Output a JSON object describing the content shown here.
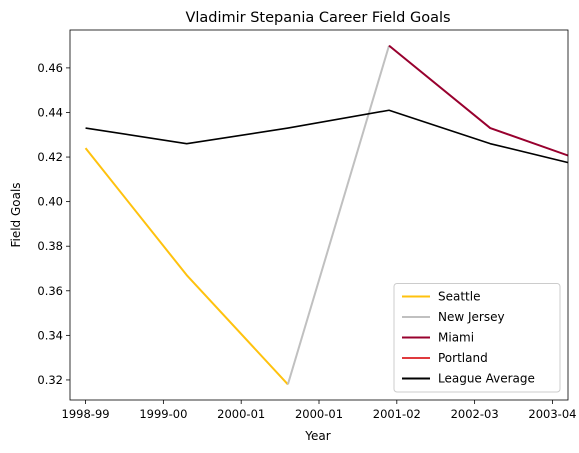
{
  "chart_data": {
    "type": "line",
    "title": "Vladimir Stepania Career Field Goals",
    "xlabel": "Year",
    "ylabel": "Field Goals",
    "ylim": [
      0.311,
      0.477
    ],
    "yticks": [
      0.32,
      0.34,
      0.36,
      0.38,
      0.4,
      0.42,
      0.44,
      0.46
    ],
    "ytick_labels": [
      "0.32",
      "0.34",
      "0.36",
      "0.38",
      "0.40",
      "0.42",
      "0.44",
      "0.46"
    ],
    "xlim": [
      -0.2,
      6.2
    ],
    "xticks": [
      0,
      1,
      2,
      3,
      4,
      5,
      6
    ],
    "xtick_labels": [
      "1998-99",
      "1999-00",
      "2000-01",
      "2000-01",
      "2001-02",
      "2002-03",
      "2003-04"
    ],
    "grid": false,
    "legend_position": "lower-right",
    "series": [
      {
        "name": "Seattle",
        "color": "#FFC20E",
        "width": 2,
        "x": [
          0,
          1.3,
          2.6
        ],
        "y": [
          0.424,
          0.367,
          0.318
        ]
      },
      {
        "name": "New Jersey",
        "color": "#C0C0C0",
        "width": 2,
        "x": [
          2.6,
          3.9
        ],
        "y": [
          0.318,
          0.47
        ]
      },
      {
        "name": "Miami",
        "color": "#98002E",
        "width": 2,
        "x": [
          3.9,
          5.2,
          6.5
        ],
        "y": [
          0.47,
          0.433,
          0.417
        ]
      },
      {
        "name": "Portland",
        "color": "#E03A3E",
        "width": 2,
        "x": [],
        "y": []
      },
      {
        "name": "League Average",
        "color": "#000000",
        "width": 1.6,
        "x": [
          0,
          1.3,
          2.6,
          3.9,
          5.2,
          6.5
        ],
        "y": [
          0.433,
          0.426,
          0.433,
          0.441,
          0.426,
          0.415
        ]
      }
    ]
  }
}
